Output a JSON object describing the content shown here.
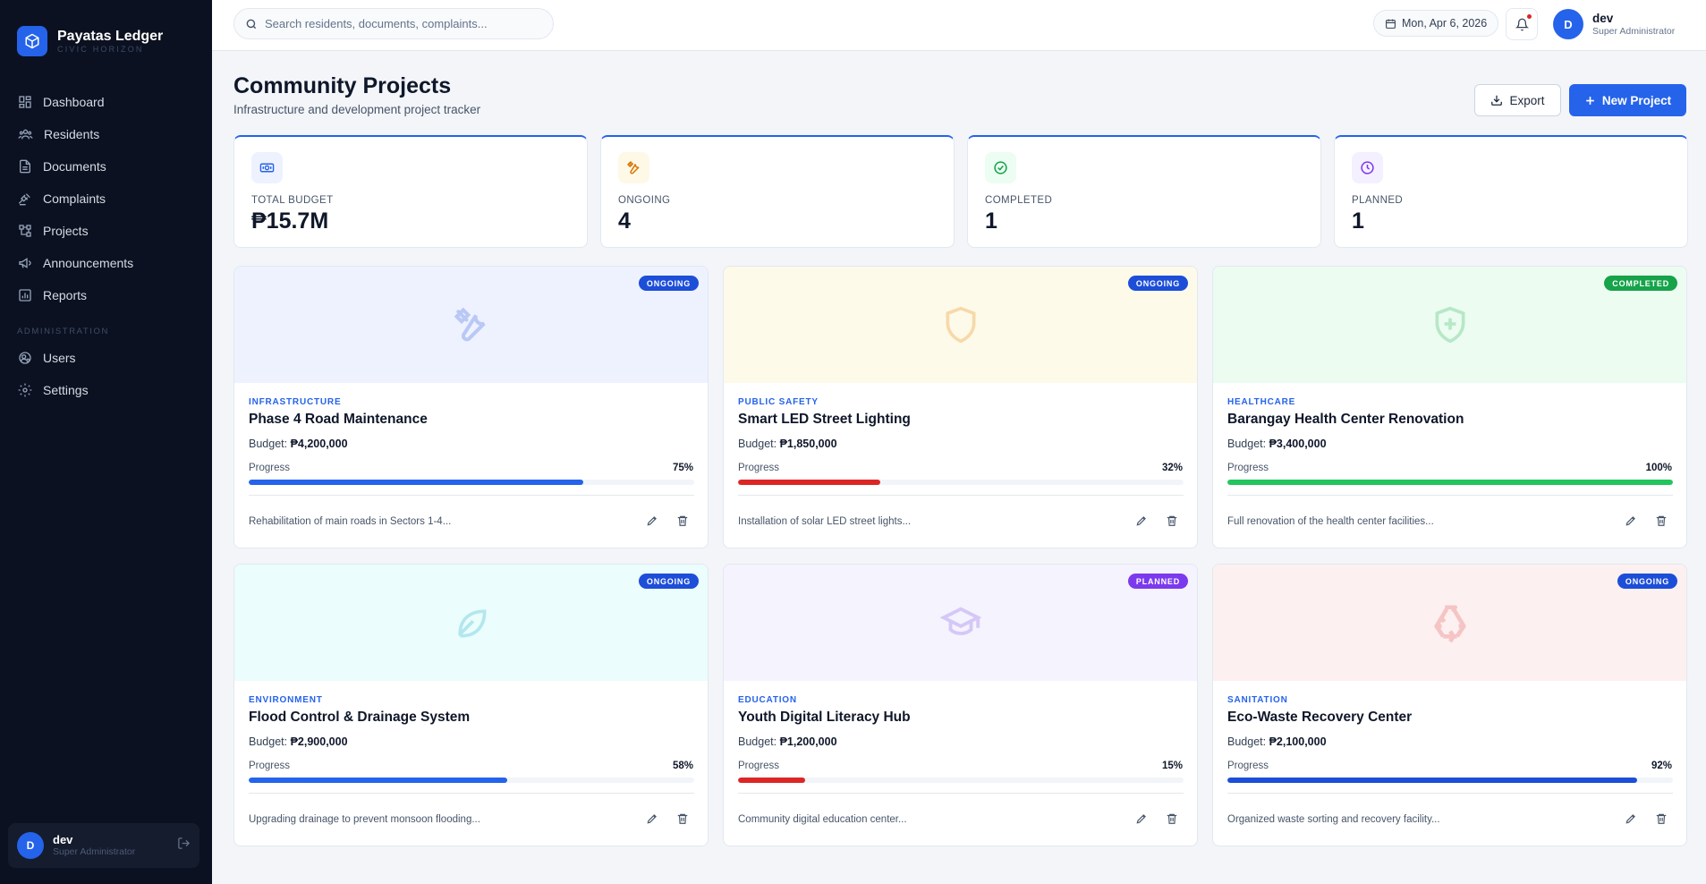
{
  "sidebar": {
    "brand_name": "Payatas Ledger",
    "brand_sub": "CIVIC HORIZON",
    "nav": [
      {
        "label": "Dashboard",
        "icon": "grid-icon"
      },
      {
        "label": "Residents",
        "icon": "users-icon"
      },
      {
        "label": "Documents",
        "icon": "file-icon"
      },
      {
        "label": "Complaints",
        "icon": "gavel-icon"
      },
      {
        "label": "Projects",
        "icon": "project-icon"
      },
      {
        "label": "Announcements",
        "icon": "megaphone-icon"
      },
      {
        "label": "Reports",
        "icon": "chart-icon"
      }
    ],
    "admin_section": "ADMINISTRATION",
    "admin_nav": [
      {
        "label": "Users",
        "icon": "users-cog-icon"
      },
      {
        "label": "Settings",
        "icon": "gear-icon"
      }
    ],
    "user": {
      "initial": "D",
      "name": "dev",
      "role": "Super Administrator"
    }
  },
  "topbar": {
    "search_placeholder": "Search residents, documents, complaints...",
    "date": "Mon, Apr 6, 2026",
    "user": {
      "initial": "D",
      "name": "dev",
      "role": "Super Administrator"
    }
  },
  "header": {
    "title": "Community Projects",
    "subtitle": "Infrastructure and development project tracker",
    "export_label": "Export",
    "new_label": "New Project"
  },
  "stats": [
    {
      "label": "TOTAL BUDGET",
      "value": "₱15.7M",
      "icon": "money-icon"
    },
    {
      "label": "ONGOING",
      "value": "4",
      "icon": "tools-icon"
    },
    {
      "label": "COMPLETED",
      "value": "1",
      "icon": "check-circle-icon"
    },
    {
      "label": "PLANNED",
      "value": "1",
      "icon": "clock-icon"
    }
  ],
  "projects": [
    {
      "status": "ONGOING",
      "category": "INFRASTRUCTURE",
      "title": "Phase 4 Road Maintenance",
      "budget_label": "Budget:",
      "budget": "₱4,200,000",
      "progress_label": "Progress",
      "progress": 75,
      "progress_text": "75%",
      "description": "Rehabilitation of main roads in Sectors 1-4...",
      "icon": "tools-icon"
    },
    {
      "status": "ONGOING",
      "category": "PUBLIC SAFETY",
      "title": "Smart LED Street Lighting",
      "budget_label": "Budget:",
      "budget": "₱1,850,000",
      "progress_label": "Progress",
      "progress": 32,
      "progress_text": "32%",
      "description": "Installation of solar LED street lights...",
      "icon": "shield-icon"
    },
    {
      "status": "COMPLETED",
      "category": "HEALTHCARE",
      "title": "Barangay Health Center Renovation",
      "budget_label": "Budget:",
      "budget": "₱3,400,000",
      "progress_label": "Progress",
      "progress": 100,
      "progress_text": "100%",
      "description": "Full renovation of the health center facilities...",
      "icon": "shield-plus-icon"
    },
    {
      "status": "ONGOING",
      "category": "ENVIRONMENT",
      "title": "Flood Control & Drainage System",
      "budget_label": "Budget:",
      "budget": "₱2,900,000",
      "progress_label": "Progress",
      "progress": 58,
      "progress_text": "58%",
      "description": "Upgrading drainage to prevent monsoon flooding...",
      "icon": "leaf-icon"
    },
    {
      "status": "PLANNED",
      "category": "EDUCATION",
      "title": "Youth Digital Literacy Hub",
      "budget_label": "Budget:",
      "budget": "₱1,200,000",
      "progress_label": "Progress",
      "progress": 15,
      "progress_text": "15%",
      "description": "Community digital education center...",
      "icon": "graduation-cap-icon"
    },
    {
      "status": "ONGOING",
      "category": "SANITATION",
      "title": "Eco-Waste Recovery Center",
      "budget_label": "Budget:",
      "budget": "₱2,100,000",
      "progress_label": "Progress",
      "progress": 92,
      "progress_text": "92%",
      "description": "Organized waste sorting and recovery facility...",
      "icon": "recycle-icon"
    }
  ],
  "colors": {
    "accent": "#2563eb",
    "sidebar_bg": "#0b1120",
    "ongoing_badge": "#1d4ed8",
    "completed_badge": "#16a34a",
    "planned_badge": "#7c3aed",
    "progress_blue": "#2563eb",
    "progress_red": "#dc2626",
    "progress_green": "#22c55e"
  }
}
